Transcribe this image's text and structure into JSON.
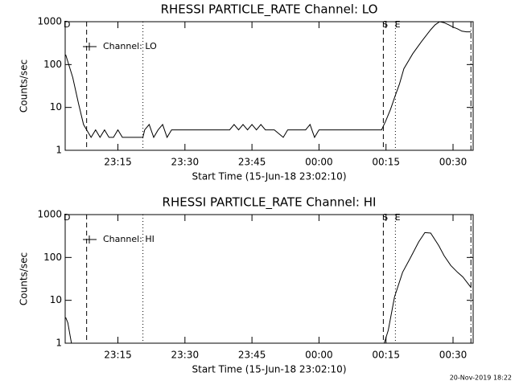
{
  "chart_data": [
    {
      "type": "line",
      "title": "RHESSI PARTICLE_RATE Channel: LO",
      "x_label": "Start Time (15-Jun-18 23:02:10)",
      "y_label": "Counts/sec",
      "log_y": true,
      "ylim": [
        1,
        1000
      ],
      "yticks": [
        1,
        10,
        100,
        1000
      ],
      "xlim": [
        3.2,
        94.5
      ],
      "xticks": [
        {
          "value": 15,
          "label": "23:15"
        },
        {
          "value": 30,
          "label": "23:30"
        },
        {
          "value": 45,
          "label": "23:45"
        },
        {
          "value": 60,
          "label": "00:00"
        },
        {
          "value": 75,
          "label": "00:15"
        },
        {
          "value": 90,
          "label": "00:30"
        }
      ],
      "legend": "upper left",
      "vlines": [
        {
          "x": 8,
          "style": "dashed"
        },
        {
          "x": 20.6,
          "style": "dotted"
        },
        {
          "x": 74.4,
          "style": "dashed"
        },
        {
          "x": 77.1,
          "style": "dotted"
        },
        {
          "x": 94,
          "style": "dashdot"
        }
      ],
      "annotations": [
        {
          "text": "D",
          "x": 3.6
        },
        {
          "text": "S",
          "x": 74.8
        },
        {
          "text": "E",
          "x": 77.6
        }
      ],
      "series": [
        {
          "name": "Channel: LO",
          "color": "#000000",
          "x": [
            3.3,
            4.9,
            6.2,
            7.3,
            8,
            9,
            10,
            11,
            12,
            13,
            14,
            15,
            16,
            17,
            18,
            19,
            20,
            20.6,
            21,
            22,
            23,
            24,
            25,
            26,
            27,
            28,
            30,
            32,
            34,
            36,
            38,
            40,
            41,
            42,
            43,
            44,
            45,
            46,
            47,
            48,
            50,
            52,
            53,
            55,
            57,
            58,
            59,
            60,
            62,
            64,
            66,
            68,
            70,
            72,
            74,
            75,
            76,
            77,
            78,
            79,
            81,
            83,
            85,
            86,
            87,
            88,
            89,
            90,
            91,
            92,
            93,
            94
          ],
          "values": [
            170,
            50,
            12,
            4,
            3,
            2,
            3,
            2,
            3,
            2,
            2,
            3,
            2,
            2,
            2,
            2,
            2,
            2,
            3,
            4,
            2,
            3,
            4,
            2,
            3,
            3,
            3,
            3,
            3,
            3,
            3,
            3,
            4,
            3,
            4,
            3,
            4,
            3,
            4,
            3,
            3,
            2,
            3,
            3,
            3,
            4,
            2,
            3,
            3,
            3,
            3,
            3,
            3,
            3,
            3,
            5,
            9,
            18,
            35,
            80,
            180,
            350,
            650,
            850,
            1000,
            950,
            850,
            750,
            680,
            600,
            580,
            580
          ]
        }
      ]
    },
    {
      "type": "line",
      "title": "RHESSI PARTICLE_RATE Channel: HI",
      "x_label": "Start Time (15-Jun-18 23:02:10)",
      "y_label": "Counts/sec",
      "log_y": true,
      "ylim": [
        1,
        1000
      ],
      "yticks": [
        1,
        10,
        100,
        1000
      ],
      "xlim": [
        3.2,
        94.5
      ],
      "xticks": [
        {
          "value": 15,
          "label": "23:15"
        },
        {
          "value": 30,
          "label": "23:30"
        },
        {
          "value": 45,
          "label": "23:45"
        },
        {
          "value": 60,
          "label": "00:00"
        },
        {
          "value": 75,
          "label": "00:15"
        },
        {
          "value": 90,
          "label": "00:30"
        }
      ],
      "legend": "upper left",
      "vlines": [
        {
          "x": 8,
          "style": "dashed"
        },
        {
          "x": 20.6,
          "style": "dotted"
        },
        {
          "x": 74.4,
          "style": "dashed"
        },
        {
          "x": 77.1,
          "style": "dotted"
        },
        {
          "x": 94,
          "style": "dashdot"
        }
      ],
      "annotations": [
        {
          "text": "D",
          "x": 3.6
        },
        {
          "text": "S",
          "x": 74.8
        },
        {
          "text": "E",
          "x": 77.6
        }
      ],
      "series": [
        {
          "name": "Channel: HI",
          "color": "#000000",
          "x": [
            3.3,
            3.8,
            4.3,
            4.6,
            10,
            74.6,
            75.5,
            76.9,
            78.7,
            80.5,
            82.3,
            83.7,
            85,
            86.8,
            88,
            89.5,
            91,
            92.2,
            94
          ],
          "values": [
            4,
            3,
            1.5,
            1,
            null,
            1,
            2,
            12,
            45,
            100,
            230,
            380,
            370,
            190,
            110,
            65,
            45,
            35,
            20
          ]
        }
      ]
    }
  ],
  "footer": "20-Nov-2019 18:22"
}
